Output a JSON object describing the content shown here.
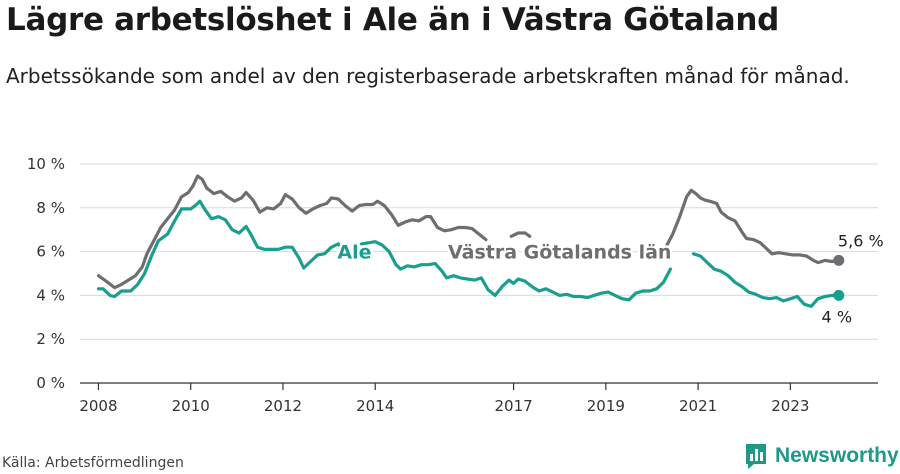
{
  "header": {
    "title": "Lägre arbetslöshet i Ale än i Västra Götaland",
    "subtitle": "Arbetssökande som andel av den registerbaserade arbetskraften månad för månad."
  },
  "footer": {
    "source": "Källa: Arbetsförmedlingen",
    "brand": "Newsworthy"
  },
  "colors": {
    "ale": "#1a9e8f",
    "vg": "#6e6e72",
    "grid": "#d9d9d9",
    "axis": "#333333",
    "brand": "#1e9987"
  },
  "chart_data": {
    "type": "line",
    "ylim": [
      0,
      10
    ],
    "yticks": [
      0,
      2,
      4,
      6,
      8,
      10
    ],
    "ytick_labels": [
      "0 %",
      "2 %",
      "4 %",
      "6 %",
      "8 %",
      "10 %"
    ],
    "xlim": [
      2007.6,
      2024.9
    ],
    "xticks": [
      2008,
      2010,
      2012,
      2014,
      2017,
      2019,
      2021,
      2023
    ],
    "xtick_labels": [
      "2008",
      "2010",
      "2012",
      "2014",
      "2017",
      "2019",
      "2021",
      "2023"
    ],
    "series": [
      {
        "name": "Västra Götalands län",
        "key": "vg",
        "end_label": "5,6 %",
        "points": [
          [
            2008.0,
            4.9
          ],
          [
            2008.1,
            4.75
          ],
          [
            2008.2,
            4.6
          ],
          [
            2008.35,
            4.35
          ],
          [
            2008.5,
            4.5
          ],
          [
            2008.65,
            4.7
          ],
          [
            2008.8,
            4.9
          ],
          [
            2008.95,
            5.3
          ],
          [
            2009.05,
            5.9
          ],
          [
            2009.2,
            6.5
          ],
          [
            2009.35,
            7.1
          ],
          [
            2009.5,
            7.5
          ],
          [
            2009.65,
            7.9
          ],
          [
            2009.8,
            8.5
          ],
          [
            2009.95,
            8.7
          ],
          [
            2010.05,
            9.0
          ],
          [
            2010.15,
            9.45
          ],
          [
            2010.25,
            9.3
          ],
          [
            2010.35,
            8.9
          ],
          [
            2010.5,
            8.65
          ],
          [
            2010.65,
            8.75
          ],
          [
            2010.8,
            8.5
          ],
          [
            2010.95,
            8.3
          ],
          [
            2011.1,
            8.45
          ],
          [
            2011.2,
            8.7
          ],
          [
            2011.35,
            8.35
          ],
          [
            2011.5,
            7.8
          ],
          [
            2011.65,
            8.0
          ],
          [
            2011.8,
            7.95
          ],
          [
            2011.95,
            8.2
          ],
          [
            2012.05,
            8.6
          ],
          [
            2012.2,
            8.4
          ],
          [
            2012.35,
            8.0
          ],
          [
            2012.5,
            7.75
          ],
          [
            2012.65,
            7.95
          ],
          [
            2012.8,
            8.1
          ],
          [
            2012.95,
            8.2
          ],
          [
            2013.05,
            8.45
          ],
          [
            2013.2,
            8.4
          ],
          [
            2013.35,
            8.1
          ],
          [
            2013.5,
            7.85
          ],
          [
            2013.65,
            8.1
          ],
          [
            2013.8,
            8.15
          ],
          [
            2013.95,
            8.15
          ],
          [
            2014.05,
            8.3
          ],
          [
            2014.2,
            8.1
          ],
          [
            2014.35,
            7.7
          ],
          [
            2014.5,
            7.2
          ],
          [
            2014.65,
            7.35
          ],
          [
            2014.8,
            7.45
          ],
          [
            2014.95,
            7.4
          ],
          [
            2015.1,
            7.6
          ],
          [
            2015.2,
            7.6
          ],
          [
            2015.35,
            7.1
          ],
          [
            2015.5,
            6.95
          ],
          [
            2015.65,
            7.0
          ],
          [
            2015.8,
            7.1
          ],
          [
            2015.95,
            7.1
          ],
          [
            2016.1,
            7.05
          ],
          [
            2016.25,
            6.8
          ],
          [
            2016.4,
            6.55
          ]
        ]
      },
      {
        "name": "Västra Götalands län",
        "key": "vg",
        "points": [
          [
            2016.95,
            6.7
          ],
          [
            2017.1,
            6.85
          ],
          [
            2017.25,
            6.85
          ],
          [
            2017.35,
            6.7
          ]
        ]
      },
      {
        "name": "Västra Götalands län",
        "key": "vg",
        "points": [
          [
            2020.3,
            6.2
          ],
          [
            2020.45,
            6.8
          ],
          [
            2020.6,
            7.6
          ],
          [
            2020.75,
            8.5
          ],
          [
            2020.85,
            8.8
          ],
          [
            2020.95,
            8.65
          ],
          [
            2021.05,
            8.45
          ],
          [
            2021.15,
            8.35
          ],
          [
            2021.25,
            8.3
          ],
          [
            2021.4,
            8.2
          ],
          [
            2021.5,
            7.8
          ],
          [
            2021.65,
            7.55
          ],
          [
            2021.8,
            7.4
          ],
          [
            2021.95,
            6.9
          ],
          [
            2022.05,
            6.6
          ],
          [
            2022.2,
            6.55
          ],
          [
            2022.35,
            6.4
          ],
          [
            2022.5,
            6.1
          ],
          [
            2022.6,
            5.9
          ],
          [
            2022.75,
            5.95
          ],
          [
            2022.9,
            5.9
          ],
          [
            2023.05,
            5.85
          ],
          [
            2023.2,
            5.85
          ],
          [
            2023.35,
            5.8
          ],
          [
            2023.5,
            5.6
          ],
          [
            2023.6,
            5.5
          ],
          [
            2023.75,
            5.6
          ],
          [
            2023.9,
            5.55
          ],
          [
            2024.05,
            5.6
          ]
        ]
      },
      {
        "name": "Ale",
        "key": "ale",
        "end_label": "4 %",
        "points": [
          [
            2008.0,
            4.3
          ],
          [
            2008.1,
            4.3
          ],
          [
            2008.25,
            4.0
          ],
          [
            2008.35,
            3.95
          ],
          [
            2008.5,
            4.2
          ],
          [
            2008.7,
            4.2
          ],
          [
            2008.85,
            4.5
          ],
          [
            2009.0,
            5.0
          ],
          [
            2009.15,
            5.8
          ],
          [
            2009.3,
            6.5
          ],
          [
            2009.5,
            6.8
          ],
          [
            2009.65,
            7.4
          ],
          [
            2009.8,
            7.95
          ],
          [
            2010.0,
            7.95
          ],
          [
            2010.1,
            8.1
          ],
          [
            2010.2,
            8.3
          ],
          [
            2010.3,
            7.95
          ],
          [
            2010.45,
            7.5
          ],
          [
            2010.6,
            7.6
          ],
          [
            2010.75,
            7.45
          ],
          [
            2010.9,
            7.0
          ],
          [
            2011.05,
            6.85
          ],
          [
            2011.2,
            7.15
          ],
          [
            2011.3,
            6.8
          ],
          [
            2011.45,
            6.2
          ],
          [
            2011.6,
            6.1
          ],
          [
            2011.75,
            6.1
          ],
          [
            2011.9,
            6.1
          ],
          [
            2012.05,
            6.2
          ],
          [
            2012.2,
            6.2
          ],
          [
            2012.35,
            5.7
          ],
          [
            2012.45,
            5.25
          ],
          [
            2012.6,
            5.55
          ],
          [
            2012.75,
            5.85
          ],
          [
            2012.9,
            5.9
          ],
          [
            2013.05,
            6.2
          ],
          [
            2013.2,
            6.35
          ],
          [
            2013.3,
            6.1
          ]
        ]
      },
      {
        "name": "Ale",
        "key": "ale",
        "points": [
          [
            2013.7,
            6.35
          ],
          [
            2013.85,
            6.4
          ],
          [
            2014.0,
            6.45
          ],
          [
            2014.15,
            6.3
          ],
          [
            2014.3,
            6.0
          ],
          [
            2014.45,
            5.4
          ],
          [
            2014.55,
            5.2
          ],
          [
            2014.7,
            5.35
          ],
          [
            2014.85,
            5.3
          ],
          [
            2015.0,
            5.4
          ],
          [
            2015.15,
            5.4
          ],
          [
            2015.3,
            5.45
          ],
          [
            2015.45,
            5.1
          ],
          [
            2015.55,
            4.8
          ],
          [
            2015.7,
            4.9
          ],
          [
            2015.85,
            4.8
          ],
          [
            2016.0,
            4.75
          ],
          [
            2016.15,
            4.7
          ],
          [
            2016.3,
            4.8
          ],
          [
            2016.45,
            4.25
          ],
          [
            2016.6,
            4.0
          ],
          [
            2016.75,
            4.4
          ],
          [
            2016.9,
            4.7
          ],
          [
            2017.0,
            4.55
          ],
          [
            2017.1,
            4.75
          ],
          [
            2017.25,
            4.65
          ],
          [
            2017.4,
            4.4
          ],
          [
            2017.55,
            4.2
          ],
          [
            2017.7,
            4.3
          ],
          [
            2017.85,
            4.15
          ],
          [
            2018.0,
            4.0
          ],
          [
            2018.15,
            4.05
          ],
          [
            2018.3,
            3.95
          ],
          [
            2018.45,
            3.95
          ],
          [
            2018.6,
            3.9
          ],
          [
            2018.75,
            4.0
          ],
          [
            2018.9,
            4.1
          ],
          [
            2019.05,
            4.15
          ],
          [
            2019.2,
            4.0
          ],
          [
            2019.35,
            3.85
          ],
          [
            2019.5,
            3.8
          ],
          [
            2019.65,
            4.1
          ],
          [
            2019.8,
            4.2
          ],
          [
            2019.95,
            4.2
          ],
          [
            2020.1,
            4.3
          ],
          [
            2020.25,
            4.6
          ],
          [
            2020.4,
            5.2
          ]
        ]
      },
      {
        "name": "Ale",
        "key": "ale",
        "points": [
          [
            2020.9,
            5.9
          ],
          [
            2021.05,
            5.8
          ],
          [
            2021.2,
            5.5
          ],
          [
            2021.35,
            5.2
          ],
          [
            2021.5,
            5.1
          ],
          [
            2021.65,
            4.9
          ],
          [
            2021.8,
            4.6
          ],
          [
            2021.95,
            4.4
          ],
          [
            2022.1,
            4.15
          ],
          [
            2022.25,
            4.05
          ],
          [
            2022.4,
            3.9
          ],
          [
            2022.55,
            3.85
          ],
          [
            2022.7,
            3.9
          ],
          [
            2022.85,
            3.75
          ],
          [
            2023.0,
            3.85
          ],
          [
            2023.15,
            3.95
          ],
          [
            2023.3,
            3.6
          ],
          [
            2023.45,
            3.5
          ],
          [
            2023.6,
            3.85
          ],
          [
            2023.75,
            3.95
          ],
          [
            2023.9,
            4.0
          ],
          [
            2024.05,
            4.0
          ]
        ]
      }
    ],
    "labels": [
      {
        "key": "ale",
        "text": "Ale",
        "x": 2013.55,
        "y": 6.0
      },
      {
        "key": "vg",
        "text": "Västra Götalands län",
        "x": 2018.0,
        "y": 6.0
      }
    ],
    "endpoints": [
      {
        "key": "vg",
        "x": 2024.05,
        "y": 5.6,
        "text": "5,6 %"
      },
      {
        "key": "ale",
        "x": 2024.05,
        "y": 4.0,
        "text": "4 %"
      }
    ]
  }
}
